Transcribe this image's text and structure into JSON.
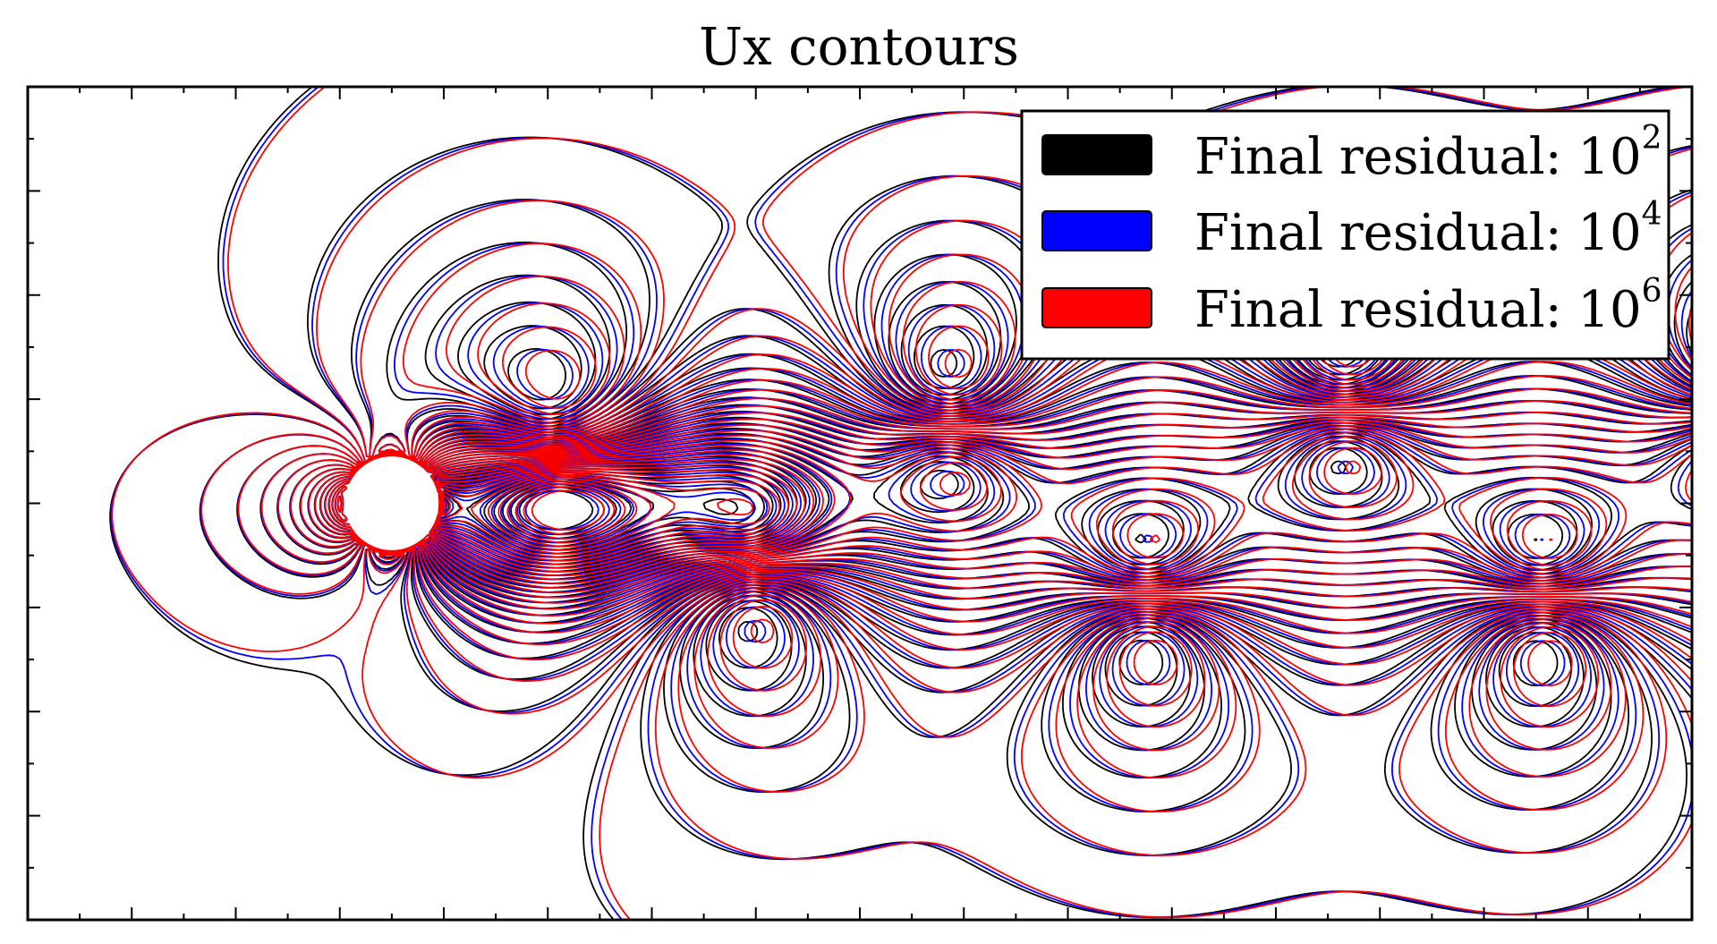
{
  "chart_data": {
    "type": "contour",
    "title": "Ux contours",
    "xlabel": "",
    "ylabel": "",
    "grid": false,
    "x_tick_labels": [],
    "y_tick_labels": [],
    "legend": {
      "placement": "top-right",
      "entries": [
        {
          "label": "Final residual: ",
          "base": "10",
          "exponent": "2",
          "color": "#000000"
        },
        {
          "label": "Final residual: ",
          "base": "10",
          "exponent": "4",
          "color": "#0000ff"
        },
        {
          "label": "Final residual: ",
          "base": "10",
          "exponent": "6",
          "color": "#ff0000"
        }
      ]
    },
    "series": [
      {
        "name": "Final residual: 10^2",
        "color": "#000000"
      },
      {
        "name": "Final residual: 10^4",
        "color": "#0000ff"
      },
      {
        "name": "Final residual: 10^6",
        "color": "#ff0000"
      }
    ],
    "field": "Ux",
    "body": "cylinder"
  }
}
